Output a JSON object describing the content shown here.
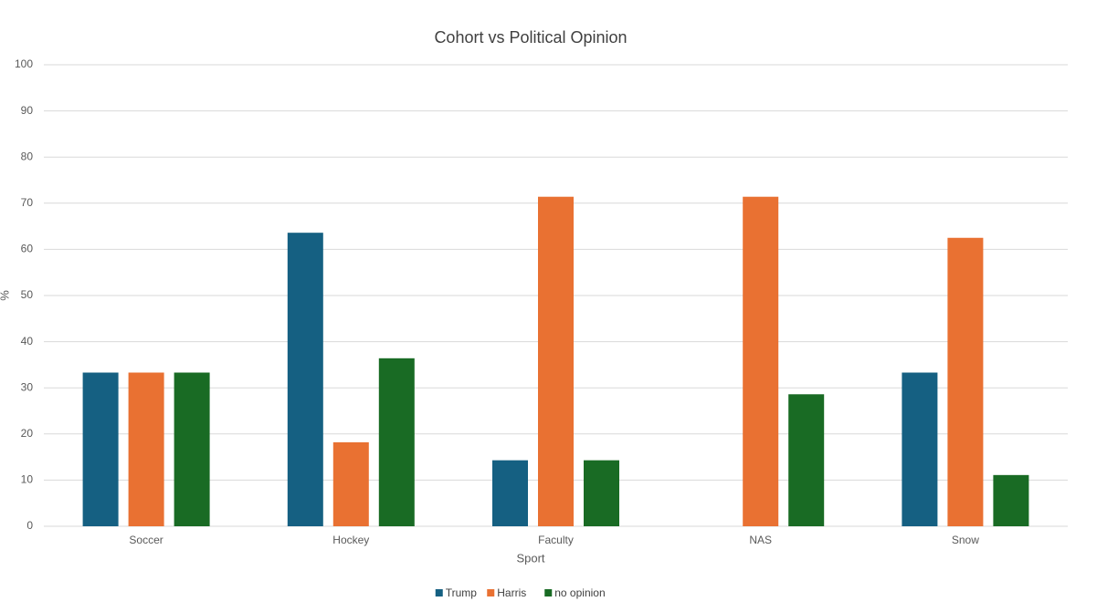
{
  "chart_data": {
    "type": "bar",
    "title": "Cohort vs Political Opinion",
    "x_label": "Sport",
    "y_label": "%",
    "categories": [
      "Soccer",
      "Hockey",
      "Faculty",
      "NAS",
      "Snow"
    ],
    "series": [
      {
        "name": "Trump",
        "color": "#156082",
        "values": [
          33.3,
          63.6,
          14.3,
          0,
          33.3
        ]
      },
      {
        "name": "Harris",
        "color": "#e97132",
        "values": [
          33.3,
          18.2,
          71.4,
          71.4,
          62.5
        ]
      },
      {
        "name": "no opinion",
        "color": "#196b24",
        "values": [
          33.3,
          36.4,
          14.3,
          28.6,
          11.1
        ]
      }
    ],
    "ylim": [
      0,
      100
    ],
    "yticks": [
      0,
      10,
      20,
      30,
      40,
      50,
      60,
      70,
      80,
      90,
      100
    ],
    "grid": true,
    "legend": "bottom"
  }
}
